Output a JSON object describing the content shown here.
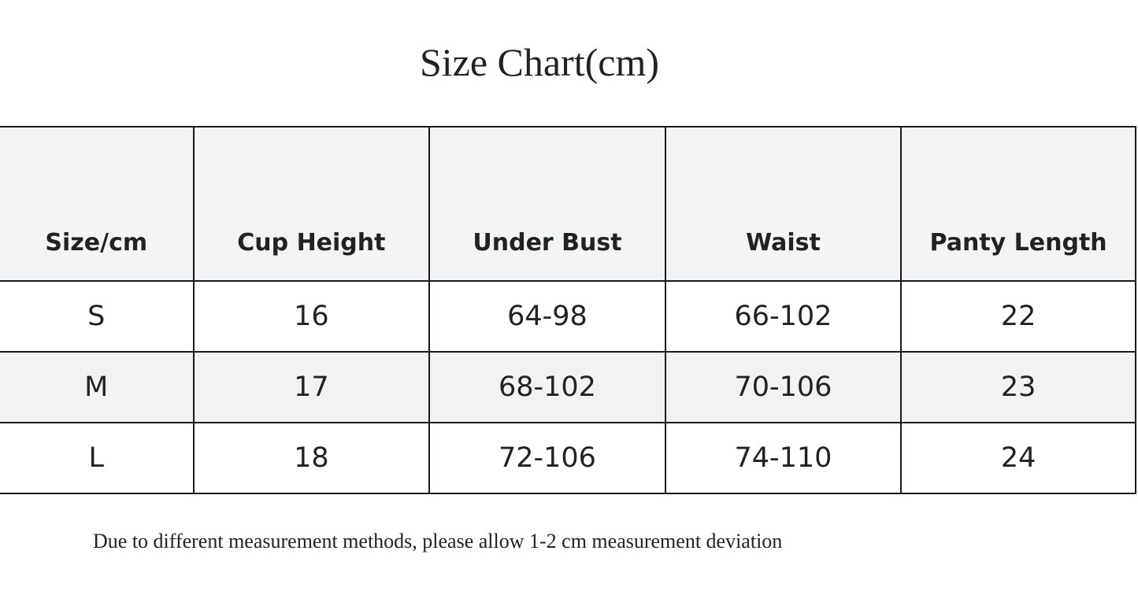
{
  "title": "Size Chart(cm)",
  "table": {
    "headers": [
      "Size/cm",
      "Cup Height",
      "Under Bust",
      "Waist",
      "Panty Length"
    ],
    "rows": [
      [
        "S",
        "16",
        "64-98",
        "66-102",
        "22"
      ],
      [
        "M",
        "17",
        "68-102",
        "70-106",
        "23"
      ],
      [
        "L",
        "18",
        "72-106",
        "74-110",
        "24"
      ]
    ]
  },
  "note": "Due to different measurement methods, please allow 1-2 cm measurement deviation"
}
